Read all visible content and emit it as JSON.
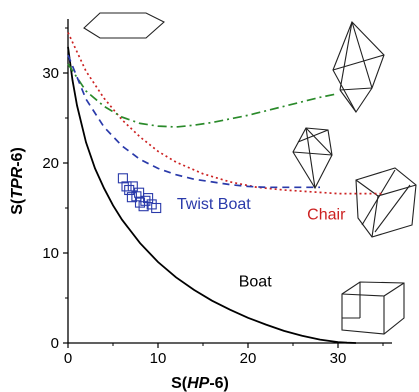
{
  "chart_data": {
    "type": "line",
    "xlabel": {
      "prefix": "S(",
      "italic": "HP",
      "suffix": "-6)"
    },
    "ylabel": {
      "prefix": "S(",
      "italic": "TPR",
      "suffix": "-6)"
    },
    "xlim": [
      0,
      36
    ],
    "ylim": [
      0,
      36
    ],
    "xticks": [
      0,
      10,
      20,
      30
    ],
    "yticks": [
      0,
      10,
      20,
      30
    ],
    "grid": false,
    "series": [
      {
        "name": "Boat",
        "style": "solid",
        "color": "#000000",
        "x": [
          0,
          0.5,
          1,
          2,
          3,
          4,
          5,
          6,
          8,
          10,
          12,
          14,
          16,
          18,
          20,
          22,
          24,
          26,
          28,
          30,
          31,
          32
        ],
        "y": [
          32.9,
          29.2,
          26.4,
          22.3,
          19.4,
          17.2,
          15.3,
          13.7,
          11.1,
          9.0,
          7.3,
          5.9,
          4.7,
          3.7,
          2.8,
          2.05,
          1.35,
          0.8,
          0.38,
          0.1,
          0.03,
          0
        ]
      },
      {
        "name": "Chair",
        "style": "dotted",
        "color": "#cc2222",
        "x": [
          0,
          2,
          4,
          6,
          8,
          10,
          12,
          15,
          18,
          21,
          24,
          27,
          30,
          33,
          35
        ],
        "y": [
          34.5,
          30.2,
          27.2,
          24.8,
          22.9,
          21.3,
          20.1,
          18.8,
          17.9,
          17.3,
          17.0,
          16.8,
          16.6,
          16.6,
          16.6
        ]
      },
      {
        "name": "",
        "style": "dashdot",
        "color": "#2a8a2a",
        "x": [
          0,
          2,
          4,
          6,
          8,
          10,
          12,
          14,
          16,
          18,
          20,
          22,
          24,
          26,
          28,
          30
        ],
        "y": [
          31.0,
          28.0,
          26.3,
          25.1,
          24.4,
          24.1,
          24.0,
          24.2,
          24.5,
          24.9,
          25.3,
          25.8,
          26.3,
          26.8,
          27.3,
          27.7
        ]
      },
      {
        "name": "Twist Boat",
        "style": "dashed",
        "color": "#2a3aaa",
        "x": [
          0,
          2,
          4,
          6,
          8,
          10,
          12,
          14,
          16,
          18,
          20,
          22,
          24,
          26,
          28
        ],
        "y": [
          32.0,
          27.1,
          24.0,
          21.9,
          20.4,
          19.4,
          18.7,
          18.2,
          17.9,
          17.6,
          17.4,
          17.3,
          17.3,
          17.3,
          17.3
        ]
      }
    ],
    "scatter": {
      "marker": "open-square",
      "color": "#2a3aaa",
      "points": [
        [
          6.1,
          18.3
        ],
        [
          6.5,
          17.4
        ],
        [
          6.8,
          17.0
        ],
        [
          7.2,
          17.4
        ],
        [
          7.6,
          16.3
        ],
        [
          8.0,
          15.6
        ],
        [
          7.9,
          16.7
        ],
        [
          8.4,
          15.2
        ],
        [
          8.9,
          16.1
        ],
        [
          9.3,
          15.4
        ],
        [
          9.8,
          15.0
        ],
        [
          8.6,
          15.8
        ],
        [
          7.1,
          16.2
        ]
      ]
    },
    "annotations": [
      {
        "text": "Boat",
        "color": "#000000",
        "x": 20.8,
        "y": 6.3
      },
      {
        "text": "Twist Boat",
        "color": "#2a3aaa",
        "x": 16.2,
        "y": 14.9
      },
      {
        "text": "Chair",
        "color": "#cc2222",
        "x": 28.7,
        "y": 13.7
      }
    ]
  }
}
